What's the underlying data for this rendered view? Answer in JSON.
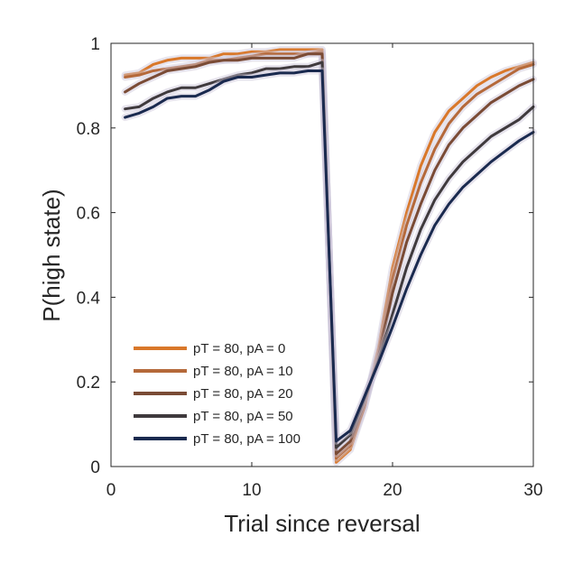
{
  "chart_data": {
    "type": "line",
    "title": "",
    "xlabel": "Trial since reversal",
    "ylabel": "P(high state)",
    "xlim": [
      0,
      30
    ],
    "ylim": [
      0,
      1
    ],
    "xticks": [
      0,
      10,
      20,
      30
    ],
    "yticks": [
      0,
      0.2,
      0.4,
      0.6,
      0.8,
      1
    ],
    "xtick_labels": [
      "0",
      "10",
      "20",
      "30"
    ],
    "ytick_labels": [
      "0",
      "0.2",
      "0.4",
      "0.6",
      "0.8",
      "1"
    ],
    "grid": false,
    "legend_position": "bottom-left",
    "x": [
      1,
      2,
      3,
      4,
      5,
      6,
      7,
      8,
      9,
      10,
      11,
      12,
      13,
      14,
      15,
      16,
      17,
      18,
      19,
      20,
      21,
      22,
      23,
      24,
      25,
      26,
      27,
      28,
      29,
      30
    ],
    "series": [
      {
        "name": "pT = 80, pA = 0",
        "color": "#d9782a",
        "values": [
          0.925,
          0.93,
          0.95,
          0.96,
          0.965,
          0.965,
          0.965,
          0.975,
          0.975,
          0.98,
          0.98,
          0.985,
          0.985,
          0.985,
          0.985,
          0.01,
          0.04,
          0.14,
          0.28,
          0.47,
          0.6,
          0.71,
          0.79,
          0.84,
          0.87,
          0.9,
          0.92,
          0.935,
          0.945,
          0.955
        ]
      },
      {
        "name": "pT = 80, pA = 10",
        "color": "#b5693a",
        "values": [
          0.92,
          0.925,
          0.935,
          0.94,
          0.945,
          0.95,
          0.96,
          0.96,
          0.965,
          0.97,
          0.975,
          0.975,
          0.975,
          0.975,
          0.98,
          0.02,
          0.05,
          0.14,
          0.27,
          0.44,
          0.57,
          0.67,
          0.75,
          0.81,
          0.85,
          0.88,
          0.9,
          0.92,
          0.94,
          0.95
        ]
      },
      {
        "name": "pT = 80, pA = 20",
        "color": "#7a4b35",
        "values": [
          0.885,
          0.905,
          0.92,
          0.935,
          0.94,
          0.945,
          0.955,
          0.96,
          0.96,
          0.965,
          0.965,
          0.965,
          0.965,
          0.975,
          0.975,
          0.03,
          0.06,
          0.15,
          0.26,
          0.41,
          0.53,
          0.62,
          0.7,
          0.76,
          0.8,
          0.83,
          0.86,
          0.88,
          0.9,
          0.915
        ]
      },
      {
        "name": "pT = 80, pA = 50",
        "color": "#3f3a3d",
        "values": [
          0.845,
          0.85,
          0.87,
          0.885,
          0.895,
          0.895,
          0.905,
          0.915,
          0.925,
          0.93,
          0.94,
          0.94,
          0.945,
          0.945,
          0.955,
          0.045,
          0.075,
          0.16,
          0.25,
          0.36,
          0.47,
          0.56,
          0.63,
          0.68,
          0.72,
          0.75,
          0.78,
          0.8,
          0.82,
          0.85
        ]
      },
      {
        "name": "pT = 80, pA = 100",
        "color": "#1a2a4f",
        "values": [
          0.825,
          0.835,
          0.85,
          0.87,
          0.875,
          0.875,
          0.89,
          0.91,
          0.92,
          0.92,
          0.925,
          0.93,
          0.93,
          0.935,
          0.935,
          0.06,
          0.085,
          0.165,
          0.245,
          0.33,
          0.42,
          0.5,
          0.57,
          0.62,
          0.66,
          0.69,
          0.72,
          0.745,
          0.77,
          0.79
        ]
      }
    ]
  }
}
